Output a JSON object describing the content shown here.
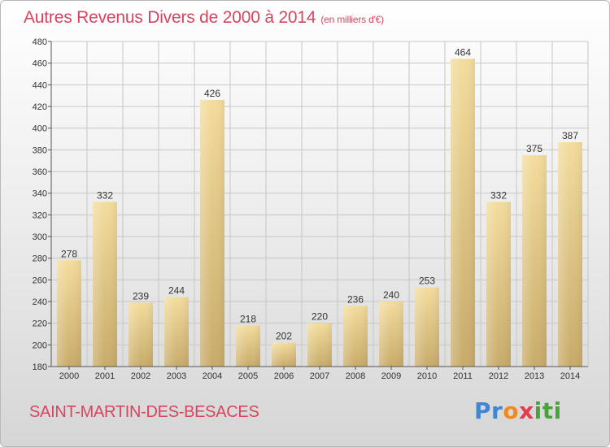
{
  "header": {
    "title": "Autres Revenus Divers de 2000 à 2014",
    "unit": "(en milliers d'€)"
  },
  "footer": {
    "place": "SAINT-MARTIN-DES-BESACES",
    "logo_parts": [
      "Pr",
      "o",
      "x",
      "iti"
    ]
  },
  "colors": {
    "bar_light": "#f3dc9c",
    "bar_dark": "#c8ab6a",
    "title": "#d84560",
    "grid": "#c6c6c6"
  },
  "chart_data": {
    "type": "bar",
    "categories": [
      "2000",
      "2001",
      "2002",
      "2003",
      "2004",
      "2005",
      "2006",
      "2007",
      "2008",
      "2009",
      "2010",
      "2011",
      "2012",
      "2013",
      "2014"
    ],
    "values": [
      278,
      332,
      239,
      244,
      426,
      218,
      202,
      220,
      236,
      240,
      253,
      464,
      332,
      375,
      387
    ],
    "title": "Autres Revenus Divers de 2000 à 2014",
    "subtitle": "(en milliers d'€)",
    "xlabel": "",
    "ylabel": "",
    "ylim": [
      180,
      480
    ],
    "yticks": [
      180,
      200,
      220,
      240,
      260,
      280,
      300,
      320,
      340,
      360,
      380,
      400,
      420,
      440,
      460,
      480
    ],
    "grid": true,
    "legend": "none"
  }
}
